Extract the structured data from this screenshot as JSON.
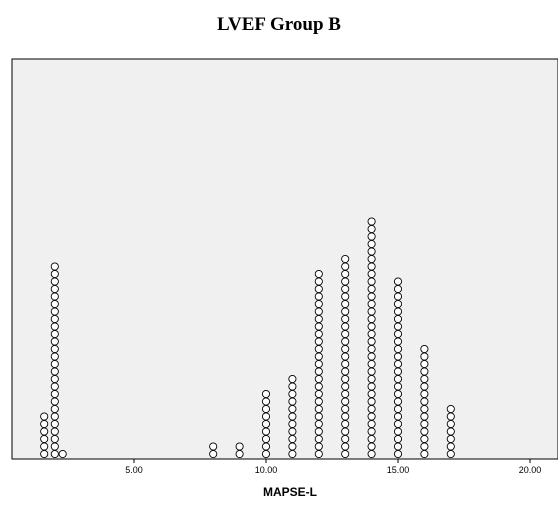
{
  "chart_data": {
    "type": "scatter",
    "title": "LVEF Group B",
    "xlabel": "MAPSE-L",
    "ylabel": "",
    "xlim": [
      0.0,
      20.0
    ],
    "xticks": [
      "5.00",
      "10.00",
      "15.00",
      "20.00"
    ],
    "xtick_values": [
      5,
      10,
      15,
      20
    ],
    "grid": false,
    "legend": "none",
    "marker": "open-circle",
    "series": [
      {
        "points": [
          {
            "x": 1.6,
            "count": 6
          },
          {
            "x": 2.0,
            "count": 26
          },
          {
            "x": 2.3,
            "count": 1
          },
          {
            "x": 8.0,
            "count": 2
          },
          {
            "x": 9.0,
            "count": 2
          },
          {
            "x": 10.0,
            "count": 9
          },
          {
            "x": 11.0,
            "count": 11
          },
          {
            "x": 12.0,
            "count": 25
          },
          {
            "x": 13.0,
            "count": 27
          },
          {
            "x": 14.0,
            "count": 32
          },
          {
            "x": 15.0,
            "count": 24
          },
          {
            "x": 16.0,
            "count": 15
          },
          {
            "x": 17.0,
            "count": 7
          }
        ]
      }
    ],
    "colors": {
      "plot_bg": "#f0f0f0",
      "marker_stroke": "#000000",
      "marker_fill": "#ffffff"
    }
  }
}
